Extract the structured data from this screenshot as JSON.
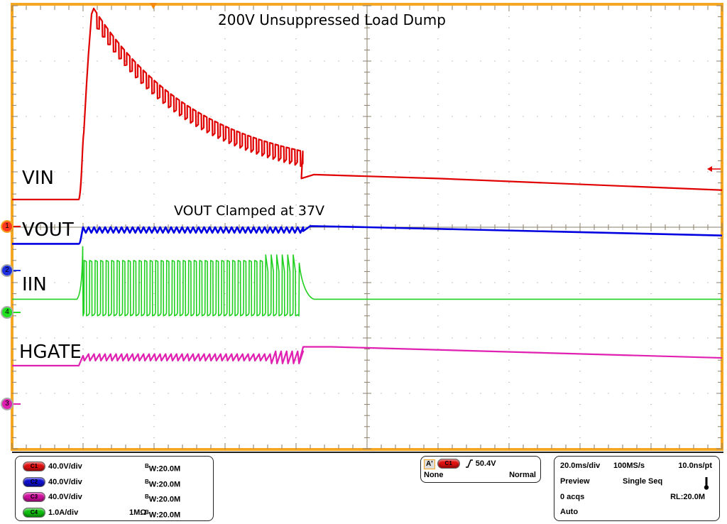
{
  "chart_data": {
    "type": "line",
    "title": "200V Unsuppressed Load Dump",
    "annotations": [
      "200V Unsuppressed Load Dump",
      "VOUT Clamped at 37V"
    ],
    "xlabel": "time (20.0ms/div)",
    "ylabel": "",
    "grid": true,
    "divisions": {
      "horizontal": 10,
      "vertical": 8
    },
    "x_range_ms": [
      0,
      200
    ],
    "legend_position": "none (inline trace labels)",
    "series": [
      {
        "name": "VIN",
        "channel": "C1",
        "color": "#e00000",
        "scale": "40.0V/div",
        "description": "Flat baseline, rises sharply at ~19ms to ~200V peak at ~23ms, then exponentially decays with square-wave ripple until ~81ms, then smooth slow decay",
        "x_ms": [
          0,
          18.8,
          20,
          21.5,
          23,
          30,
          40,
          50,
          60,
          70,
          80.5,
          82,
          100,
          120,
          140,
          160,
          180,
          200
        ],
        "y_div_from_top": [
          3.5,
          3.5,
          2.8,
          1.0,
          0.05,
          0.9,
          1.6,
          2.1,
          2.4,
          2.65,
          2.95,
          3.1,
          3.05,
          3.1,
          3.15,
          3.2,
          3.25,
          3.3
        ]
      },
      {
        "name": "VOUT",
        "channel": "C2",
        "color": "#0000e0",
        "scale": "40.0V/div",
        "description": "Flat low, rises at ~19ms to 37V clamp with triangular ripple until ~81ms, then slight decay",
        "clamp_V": 37,
        "x_ms": [
          0,
          18.8,
          20,
          80.5,
          82,
          100,
          200
        ],
        "y_div_from_top": [
          4.3,
          4.3,
          4.0,
          4.0,
          4.0,
          4.0,
          4.15
        ]
      },
      {
        "name": "IIN",
        "channel": "C4",
        "color": "#20d020",
        "scale": "1.0A/div",
        "description": "Baseline, ramps up at ~19ms spike, then pulsed square wave between high and low until ~81ms, then exponential settling to baseline",
        "x_ms": [
          0,
          18.8,
          20,
          80.5,
          83,
          85,
          200
        ],
        "y_div_from_top": [
          5.3,
          5.3,
          4.35,
          4.6,
          4.95,
          5.3,
          5.3
        ]
      },
      {
        "name": "HGATE",
        "channel": "C3",
        "color": "#e020b0",
        "scale": "40.0V/div",
        "description": "Flat baseline, small step at ~19ms, sawtooth ripple until ~81ms, then rises to plateau and slowly decays",
        "x_ms": [
          0,
          18.8,
          20,
          80.5,
          82,
          100,
          200
        ],
        "y_div_from_top": [
          6.5,
          6.5,
          6.3,
          6.4,
          6.15,
          6.2,
          6.35
        ]
      }
    ]
  },
  "trace_labels": {
    "vin": "VIN",
    "vout": "VOUT",
    "iin": "IIN",
    "hgate": "HGATE"
  },
  "annotations": {
    "title": "200V Unsuppressed Load Dump",
    "clamp": "VOUT Clamped at 37V"
  },
  "channel_markers": [
    {
      "num": "1",
      "color": "#ff3a20"
    },
    {
      "num": "2",
      "color": "#1d2fe0"
    },
    {
      "num": "4",
      "color": "#20e020"
    },
    {
      "num": "3",
      "color": "#e020b0"
    }
  ],
  "channels": [
    {
      "id": "C1",
      "scale": "40.0V/div",
      "impedance": "",
      "bw": "20.0M",
      "color": "#e01010"
    },
    {
      "id": "C2",
      "scale": "40.0V/div",
      "impedance": "",
      "bw": "20.0M",
      "color": "#1010d0"
    },
    {
      "id": "C3",
      "scale": "40.0V/div",
      "impedance": "",
      "bw": "20.0M",
      "color": "#d010a0"
    },
    {
      "id": "C4",
      "scale": "1.0A/div",
      "impedance": "1MΩ",
      "bw": "20.0M",
      "color": "#10c010"
    }
  ],
  "bw_prefix": "B",
  "bw_sub": "W",
  "trigger": {
    "label": "A'",
    "source": "C1",
    "level": "50.4V",
    "coupling": "None",
    "mode": "Normal"
  },
  "acquisition": {
    "timebase": "20.0ms/div",
    "sample_rate": "100MS/s",
    "resolution": "10.0ns/pt",
    "state": "Preview",
    "mode": "Single Seq",
    "acqs": "0 acqs",
    "record_length": "RL:20.0M",
    "trigger_type": "Auto"
  },
  "colors": {
    "frame": "#f5a623",
    "grid": "#8a7f6a"
  }
}
